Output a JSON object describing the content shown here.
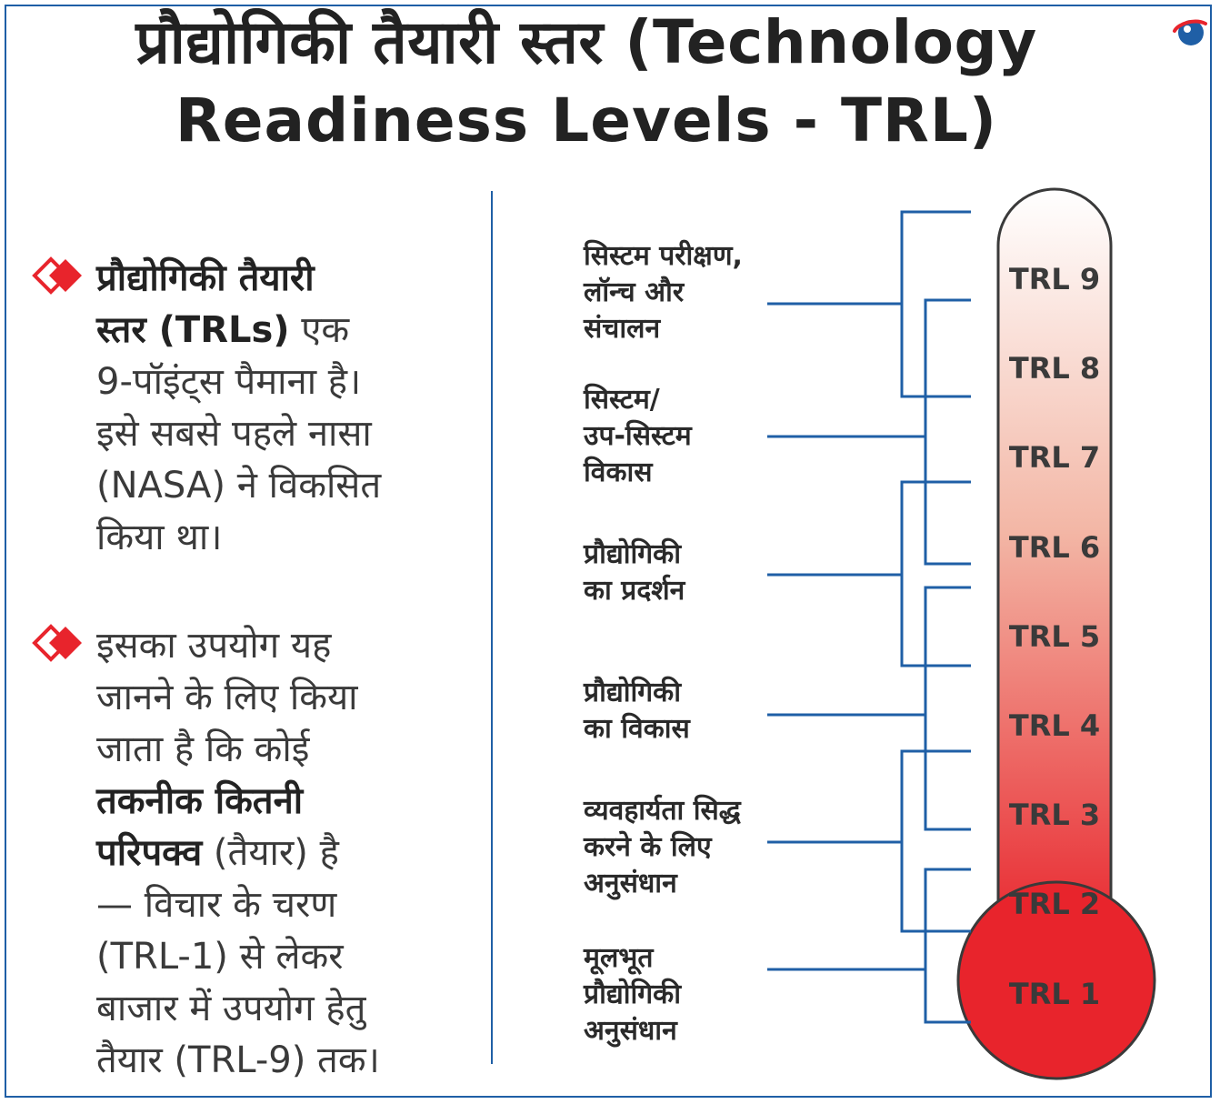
{
  "title": {
    "line1": "प्रौद्योगिकी तैयारी स्तर (Technology",
    "line2": "Readiness Levels - TRL)"
  },
  "bullets": [
    {
      "lines": [
        {
          "bold": "प्रौद्योगिकी तैयारी",
          "rest": ""
        },
        {
          "bold": "स्तर (TRLs)",
          "rest": " एक"
        },
        {
          "bold": "",
          "rest": "9-पॉइंट्स पैमाना है।"
        },
        {
          "bold": "",
          "rest": "इसे सबसे पहले नासा"
        },
        {
          "bold": "",
          "rest": "(NASA) ने विकसित"
        },
        {
          "bold": "",
          "rest": "किया था।"
        }
      ]
    },
    {
      "lines": [
        {
          "bold": "",
          "rest": "इसका उपयोग यह"
        },
        {
          "bold": "",
          "rest": "जानने के लिए किया"
        },
        {
          "bold": "",
          "rest": "जाता है कि कोई"
        },
        {
          "bold": "तकनीक कितनी",
          "rest": ""
        },
        {
          "bold": "परिपक्व",
          "rest": " (तैयार) है"
        },
        {
          "bold": "",
          "rest": "— विचार के चरण"
        },
        {
          "bold": "",
          "rest": "(TRL-1) से लेकर"
        },
        {
          "bold": "",
          "rest": "बाजार में उपयोग हेतु"
        },
        {
          "bold": "",
          "rest": "तैयार (TRL-9) तक।"
        }
      ]
    }
  ],
  "stages": [
    {
      "lines": [
        "सिस्टम परीक्षण,",
        "लॉन्च और",
        "संचालन"
      ]
    },
    {
      "lines": [
        "सिस्टम/",
        "उप-सिस्टम",
        "विकास"
      ]
    },
    {
      "lines": [
        "प्रौद्योगिकी",
        "का प्रदर्शन"
      ]
    },
    {
      "lines": [
        "प्रौद्योगिकी",
        "का विकास"
      ]
    },
    {
      "lines": [
        "व्यवहार्यता सिद्ध",
        "करने के लिए",
        "अनुसंधान"
      ]
    },
    {
      "lines": [
        "मूलभूत",
        "प्रौद्योगिकी",
        "अनुसंधान"
      ]
    }
  ],
  "levels": [
    "TRL 9",
    "TRL 8",
    "TRL 7",
    "TRL 6",
    "TRL 5",
    "TRL 4",
    "TRL 3",
    "TRL 2",
    "TRL 1"
  ],
  "colors": {
    "accent_blue": "#1f5fa6",
    "diamond_red": "#e8242c",
    "thermo_top": "#ffffff",
    "thermo_bottom": "#e8242c"
  },
  "icons": {
    "bullet": "red-diamond-icon",
    "logo": "globe-logo-icon"
  }
}
